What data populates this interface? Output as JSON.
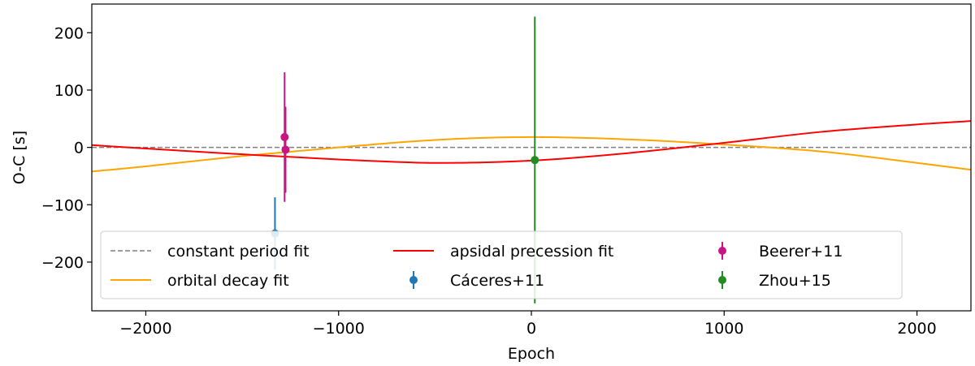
{
  "chart_data": {
    "type": "scatter",
    "title": "",
    "xlabel": "Epoch",
    "ylabel": "O-C [s]",
    "xlim": [
      -2280,
      2280
    ],
    "ylim": [
      -285,
      250
    ],
    "xticks": [
      -2000,
      -1000,
      0,
      1000,
      2000
    ],
    "xtick_labels": [
      "−2000",
      "−1000",
      "0",
      "1000",
      "2000"
    ],
    "yticks": [
      200,
      100,
      0,
      -100,
      -200
    ],
    "ytick_labels": [
      "200",
      "100",
      "0",
      "−100",
      "−200"
    ],
    "grid": false,
    "legend_position": "lower-center",
    "fits": [
      {
        "name": "constant period fit",
        "color": "#7f7f7f",
        "dash": true,
        "x": [
          -2280,
          2280
        ],
        "y": [
          0,
          0
        ]
      },
      {
        "name": "orbital decay fit",
        "color": "#ffa500",
        "dash": false,
        "x": [
          -2280,
          -2000,
          -1500,
          -1000,
          -500,
          0,
          500,
          1000,
          1500,
          2000,
          2280
        ],
        "y": [
          -42,
          -33,
          -15,
          0,
          13,
          18,
          14,
          5,
          -7,
          -27,
          -39
        ]
      },
      {
        "name": "apsidal precession fit",
        "color": "#ff0000",
        "dash": false,
        "x": [
          -2280,
          -2000,
          -1500,
          -1000,
          -500,
          0,
          500,
          1000,
          1500,
          2000,
          2280
        ],
        "y": [
          4,
          -2,
          -12,
          -21,
          -27,
          -23,
          -10,
          8,
          27,
          40,
          46
        ]
      }
    ],
    "series": [
      {
        "name": "Beerer+11",
        "color": "#c71585",
        "points": [
          {
            "x": -1280,
            "y": 18,
            "yerr": 113
          },
          {
            "x": -1275,
            "y": -4,
            "yerr": 75
          }
        ]
      },
      {
        "name": "Cáceres+11",
        "color": "#1f77b4",
        "points": [
          {
            "x": -1330,
            "y": -150,
            "yerr": 63
          }
        ]
      },
      {
        "name": "Zhou+15",
        "color": "#228b22",
        "points": [
          {
            "x": 18,
            "y": -22,
            "yerr": 250
          }
        ]
      }
    ],
    "legend": [
      {
        "label": "constant period fit",
        "kind": "line",
        "ref": "fits.0"
      },
      {
        "label": "orbital decay fit",
        "kind": "line",
        "ref": "fits.1"
      },
      {
        "label": "apsidal precession fit",
        "kind": "line",
        "ref": "fits.2"
      },
      {
        "label": "Cáceres+11",
        "kind": "marker",
        "ref": "series.1"
      },
      {
        "label": "Beerer+11",
        "kind": "marker",
        "ref": "series.0"
      },
      {
        "label": "Zhou+15",
        "kind": "marker",
        "ref": "series.2"
      }
    ]
  }
}
